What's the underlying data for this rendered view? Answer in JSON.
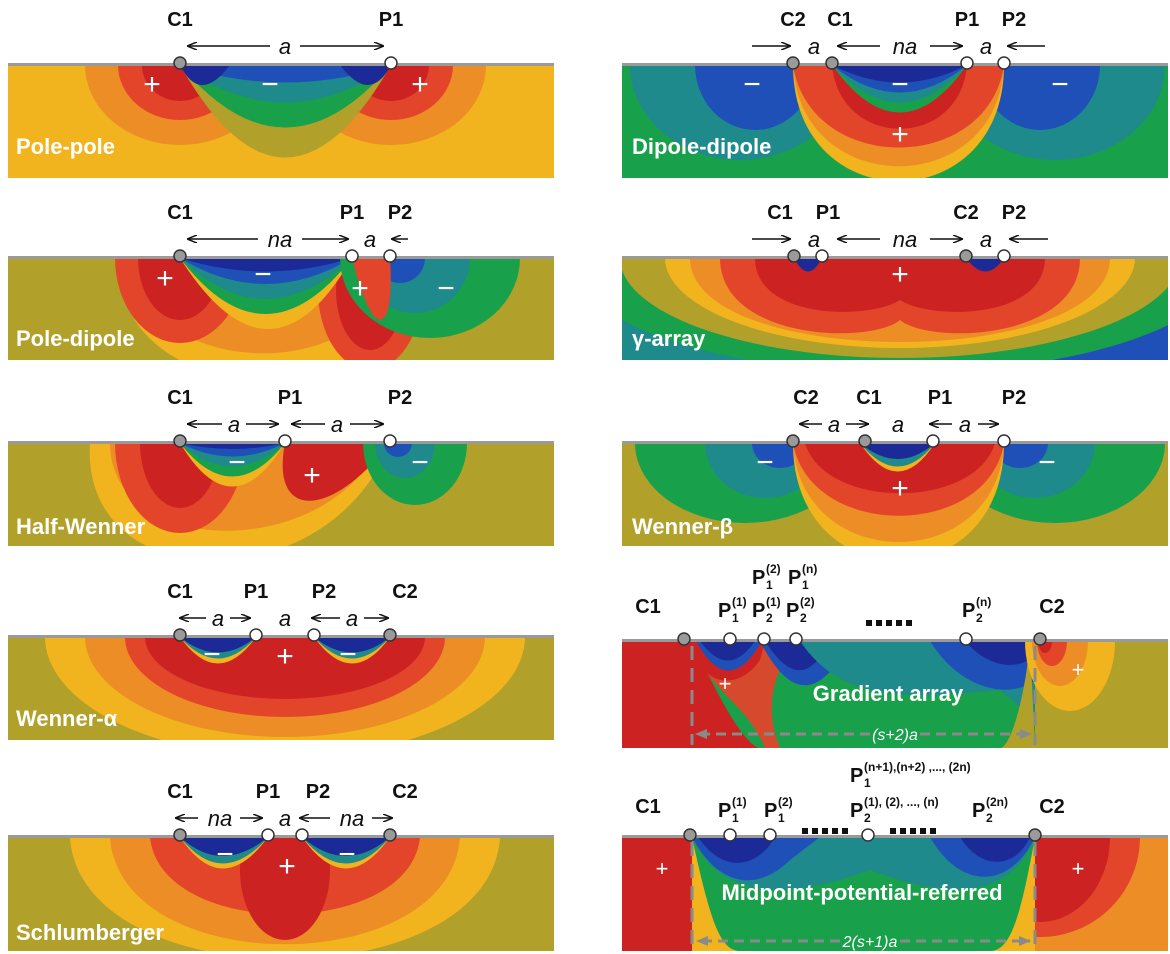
{
  "colors": {
    "navy": "#1b2a96",
    "blue": "#1f50b8",
    "teal": "#1e8a8c",
    "green": "#19a04a",
    "olive": "#b1a02a",
    "gold": "#f2b41e",
    "orange": "#ec8d25",
    "red_orange": "#e2452a",
    "red": "#cc2222"
  },
  "panels": [
    {
      "title": "Pole-pole",
      "bg": "olive_gold",
      "electrodes": [
        {
          "label": "C1"
        },
        {
          "label": "P1"
        }
      ],
      "spacings": [
        "a"
      ],
      "signs": [
        "+",
        "−",
        "+"
      ]
    },
    {
      "title": "Dipole-dipole",
      "bg": "green",
      "electrodes": [
        {
          "label": "C2"
        },
        {
          "label": "C1"
        },
        {
          "label": "P1"
        },
        {
          "label": "P2"
        }
      ],
      "spacings": [
        "a",
        "na",
        "a"
      ],
      "signs": [
        "−",
        "−",
        "+",
        "−"
      ]
    },
    {
      "title": "Pole-dipole",
      "bg": "olive",
      "electrodes": [
        {
          "label": "C1"
        },
        {
          "label": "P1"
        },
        {
          "label": "P2"
        }
      ],
      "spacings": [
        "na",
        "a"
      ],
      "signs": [
        "+",
        "−",
        "+",
        "−"
      ]
    },
    {
      "title": "γ-array",
      "bg": "teal",
      "electrodes": [
        {
          "label": "C1"
        },
        {
          "label": "P1"
        },
        {
          "label": "C2"
        },
        {
          "label": "P2"
        }
      ],
      "spacings": [
        "a",
        "na",
        "a"
      ],
      "signs": [
        "+"
      ]
    },
    {
      "title": "Half-Wenner",
      "bg": "olive",
      "electrodes": [
        {
          "label": "C1"
        },
        {
          "label": "P1"
        },
        {
          "label": "P2"
        }
      ],
      "spacings": [
        "a",
        "a"
      ],
      "signs": [
        "−",
        "+",
        "−"
      ]
    },
    {
      "title": "Wenner-β",
      "bg": "olive",
      "electrodes": [
        {
          "label": "C2"
        },
        {
          "label": "C1"
        },
        {
          "label": "P1"
        },
        {
          "label": "P2"
        }
      ],
      "spacings": [
        "a",
        "a",
        "a"
      ],
      "signs": [
        "−",
        "+",
        "−"
      ]
    },
    {
      "title": "Wenner-α",
      "bg": "olive",
      "electrodes": [
        {
          "label": "C1"
        },
        {
          "label": "P1"
        },
        {
          "label": "P2"
        },
        {
          "label": "C2"
        }
      ],
      "spacings": [
        "a",
        "a",
        "a"
      ],
      "signs": [
        "−",
        "+",
        "−"
      ]
    },
    {
      "title": "Gradient array",
      "bg": "green",
      "electrodes": [
        {
          "label": "C1"
        },
        {
          "label": "P",
          "sub": "1",
          "sup": "(1)"
        },
        {
          "label": "P",
          "sub": "2",
          "sup": "(1)"
        },
        {
          "label": "P",
          "sub": "2",
          "sup": "(2)"
        },
        {
          "label": "P",
          "sub": "2",
          "sup": "(n)"
        },
        {
          "label": "C2"
        }
      ],
      "extra_labels": [
        {
          "label": "P",
          "sub": "1",
          "sup": "(2)"
        },
        {
          "label": "P",
          "sub": "1",
          "sup": "(n)"
        }
      ],
      "span_label": "(s+2)a",
      "signs": [
        "+",
        "+"
      ]
    },
    {
      "title": "Schlumberger",
      "bg": "olive",
      "electrodes": [
        {
          "label": "C1"
        },
        {
          "label": "P1"
        },
        {
          "label": "P2"
        },
        {
          "label": "C2"
        }
      ],
      "spacings": [
        "na",
        "a",
        "na"
      ],
      "signs": [
        "−",
        "+",
        "−"
      ]
    },
    {
      "title": "Midpoint-potential-referred",
      "bg": "green",
      "electrodes": [
        {
          "label": "C1"
        },
        {
          "label": "P",
          "sub": "1",
          "sup": "(1)"
        },
        {
          "label": "P",
          "sub": "1",
          "sup": "(2)"
        },
        {
          "label": "P",
          "sub": "2",
          "sup": "(1), (2), ..., (n)"
        },
        {
          "label": "P",
          "sub": "2",
          "sup": "(2n)"
        },
        {
          "label": "C2"
        }
      ],
      "extra_labels": [
        {
          "label": "P",
          "sub": "1",
          "sup": "(n+1),(n+2) ,..., (2n)"
        }
      ],
      "span_label": "2(s+1)a",
      "signs": [
        "+",
        "+"
      ]
    }
  ]
}
